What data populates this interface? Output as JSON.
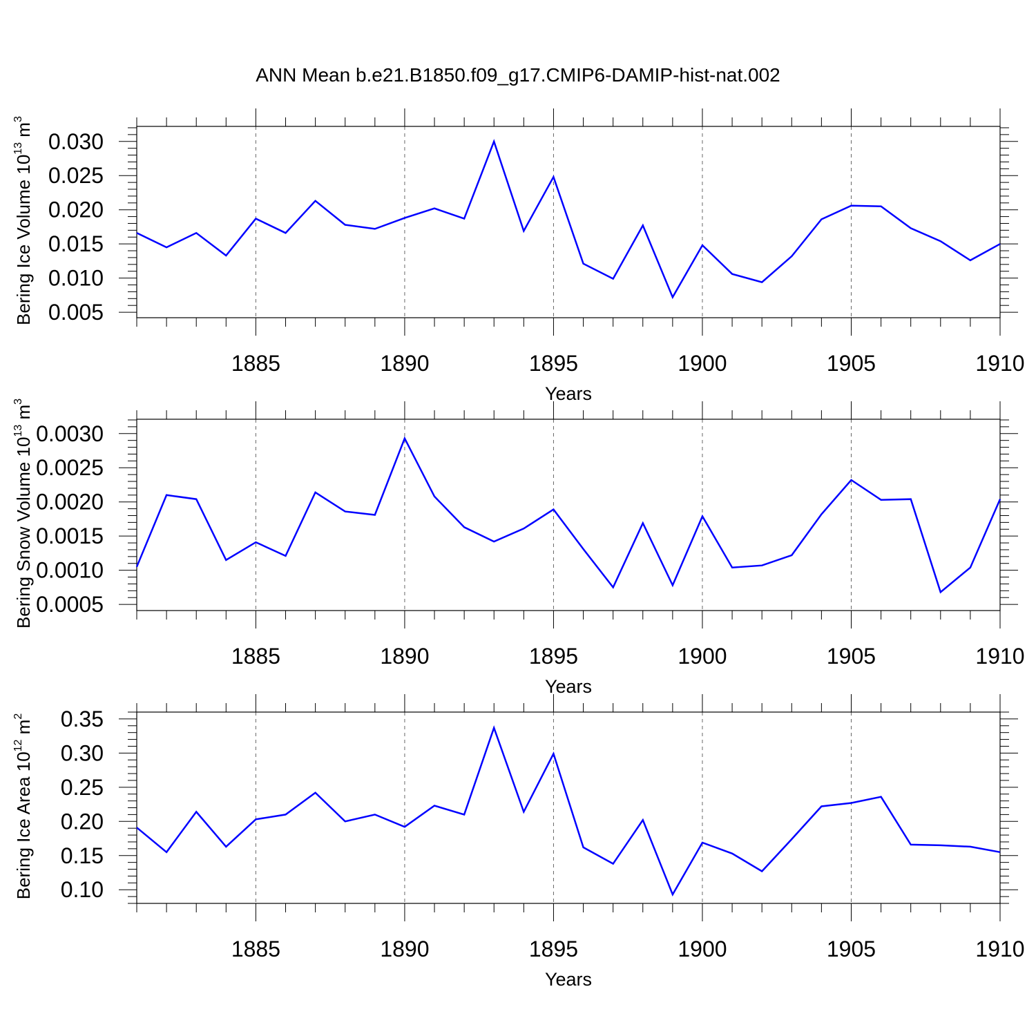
{
  "title": "ANN Mean b.e21.B1850.f09_g17.CMIP6-DAMIP-hist-nat.002",
  "colors": {
    "line": "#0000ff",
    "frame": "#000000",
    "grid": "#666666"
  },
  "chart_data": [
    {
      "type": "line",
      "xlabel": "Years",
      "ylabel": {
        "text": "Bering Ice Volume 10",
        "sup": "13",
        "unit": " m",
        "unit_sup": "3"
      },
      "xlim": [
        1881,
        1910
      ],
      "ylim": [
        0.0042,
        0.0322
      ],
      "xticks": [
        1885,
        1890,
        1895,
        1900,
        1905,
        1910
      ],
      "xtick_labels": [
        "1885",
        "1890",
        "1895",
        "1900",
        "1905",
        "1910"
      ],
      "yticks": [
        0.005,
        0.01,
        0.015,
        0.02,
        0.025,
        0.03
      ],
      "ytick_labels": [
        "0.005",
        "0.010",
        "0.015",
        "0.020",
        "0.025",
        "0.030"
      ],
      "grid": "dashed vertical at major x ticks",
      "x": [
        1881,
        1882,
        1883,
        1884,
        1885,
        1886,
        1887,
        1888,
        1889,
        1890,
        1891,
        1892,
        1893,
        1894,
        1895,
        1896,
        1897,
        1898,
        1899,
        1900,
        1901,
        1902,
        1903,
        1904,
        1905,
        1906,
        1907,
        1908,
        1909,
        1910
      ],
      "y": [
        0.0166,
        0.0145,
        0.0166,
        0.0133,
        0.0187,
        0.0166,
        0.0213,
        0.0178,
        0.0172,
        0.0188,
        0.0202,
        0.0187,
        0.03,
        0.0169,
        0.0248,
        0.0121,
        0.0099,
        0.0177,
        0.0072,
        0.0148,
        0.0106,
        0.0094,
        0.0132,
        0.0186,
        0.0206,
        0.0205,
        0.0173,
        0.0154,
        0.0126,
        0.015
      ]
    },
    {
      "type": "line",
      "xlabel": "Years",
      "ylabel": {
        "text": "Bering Snow Volume 10",
        "sup": "13",
        "unit": " m",
        "unit_sup": "3"
      },
      "xlim": [
        1881,
        1910
      ],
      "ylim": [
        0.00041,
        0.00321
      ],
      "xticks": [
        1885,
        1890,
        1895,
        1900,
        1905,
        1910
      ],
      "xtick_labels": [
        "1885",
        "1890",
        "1895",
        "1900",
        "1905",
        "1910"
      ],
      "yticks": [
        0.0005,
        0.001,
        0.0015,
        0.002,
        0.0025,
        0.003
      ],
      "ytick_labels": [
        "0.0005",
        "0.0010",
        "0.0015",
        "0.0020",
        "0.0025",
        "0.0030"
      ],
      "grid": "dashed vertical at major x ticks",
      "x": [
        1881,
        1882,
        1883,
        1884,
        1885,
        1886,
        1887,
        1888,
        1889,
        1890,
        1891,
        1892,
        1893,
        1894,
        1895,
        1896,
        1897,
        1898,
        1899,
        1900,
        1901,
        1902,
        1903,
        1904,
        1905,
        1906,
        1907,
        1908,
        1909,
        1910
      ],
      "y": [
        0.00105,
        0.0021,
        0.00204,
        0.00115,
        0.00141,
        0.00121,
        0.00214,
        0.00186,
        0.00181,
        0.00293,
        0.00208,
        0.00163,
        0.00142,
        0.00161,
        0.00189,
        0.00131,
        0.00075,
        0.00169,
        0.00078,
        0.00179,
        0.00104,
        0.00107,
        0.00122,
        0.00182,
        0.00232,
        0.00203,
        0.00204,
        0.00068,
        0.00104,
        0.00204
      ]
    },
    {
      "type": "line",
      "xlabel": "Years",
      "ylabel": {
        "text": "Bering Ice Area 10",
        "sup": "12",
        "unit": " m",
        "unit_sup": "2"
      },
      "xlim": [
        1881,
        1910
      ],
      "ylim": [
        0.08,
        0.36
      ],
      "xticks": [
        1885,
        1890,
        1895,
        1900,
        1905,
        1910
      ],
      "xtick_labels": [
        "1885",
        "1890",
        "1895",
        "1900",
        "1905",
        "1910"
      ],
      "yticks": [
        0.1,
        0.15,
        0.2,
        0.25,
        0.3,
        0.35
      ],
      "ytick_labels": [
        "0.10",
        "0.15",
        "0.20",
        "0.25",
        "0.30",
        "0.35"
      ],
      "grid": "dashed vertical at major x ticks",
      "x": [
        1881,
        1882,
        1883,
        1884,
        1885,
        1886,
        1887,
        1888,
        1889,
        1890,
        1891,
        1892,
        1893,
        1894,
        1895,
        1896,
        1897,
        1898,
        1899,
        1900,
        1901,
        1902,
        1903,
        1904,
        1905,
        1906,
        1907,
        1908,
        1909,
        1910
      ],
      "y": [
        0.191,
        0.155,
        0.214,
        0.163,
        0.203,
        0.21,
        0.242,
        0.2,
        0.21,
        0.192,
        0.223,
        0.21,
        0.337,
        0.214,
        0.299,
        0.162,
        0.138,
        0.202,
        0.093,
        0.169,
        0.153,
        0.127,
        0.174,
        0.222,
        0.227,
        0.236,
        0.166,
        0.165,
        0.163,
        0.155
      ]
    }
  ]
}
